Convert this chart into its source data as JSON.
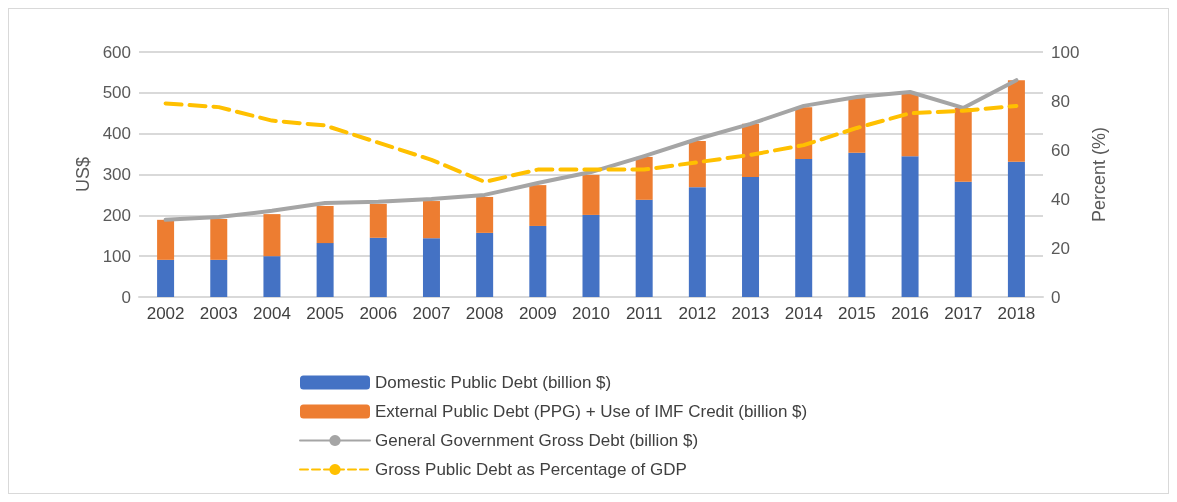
{
  "chart_data": {
    "type": "bar",
    "stacked": true,
    "ylabel": "US$",
    "y2label": "Percent (%)",
    "categories": [
      "2002",
      "2003",
      "2004",
      "2005",
      "2006",
      "2007",
      "2008",
      "2009",
      "2010",
      "2011",
      "2012",
      "2013",
      "2014",
      "2015",
      "2016",
      "2017",
      "2018"
    ],
    "series": [
      {
        "name": "Domestic Public Debt (billion $)",
        "color": "#4472c4",
        "values": [
          91,
          91,
          100,
          132,
          145,
          144,
          157,
          174,
          201,
          238,
          269,
          294,
          338,
          353,
          345,
          282,
          331
        ]
      },
      {
        "name": "External Public Debt (PPG) + Use of IMF Credit (billion $)",
        "color": "#ed7d31",
        "values": [
          98,
          100,
          103,
          91,
          83,
          91,
          88,
          100,
          98,
          105,
          113,
          130,
          127,
          137,
          152,
          181,
          200
        ]
      },
      {
        "name": "General Government Gross Debt (billion $)",
        "type": "line",
        "line_style": "solid",
        "color": "#a5a5a5",
        "values": [
          189,
          196,
          211,
          230,
          233,
          240,
          250,
          279,
          306,
          345,
          387,
          424,
          468,
          490,
          502,
          463,
          531
        ]
      },
      {
        "name": "Gross Public Debt as Percentage of GDP",
        "type": "line",
        "line_style": "dashed",
        "axis": "y2",
        "color": "#ffc000",
        "values": [
          79,
          77.5,
          72,
          70,
          63,
          56,
          47,
          52,
          52,
          52,
          55,
          58,
          62,
          69,
          75,
          76,
          78
        ]
      }
    ],
    "ylim": [
      0,
      600
    ],
    "yticks": [
      0,
      100,
      200,
      300,
      400,
      500,
      600
    ],
    "y2lim": [
      0,
      100
    ],
    "y2ticks": [
      0,
      20,
      40,
      60,
      80,
      100
    ],
    "grid": "y",
    "legend": "bottom",
    "marker": "none"
  }
}
